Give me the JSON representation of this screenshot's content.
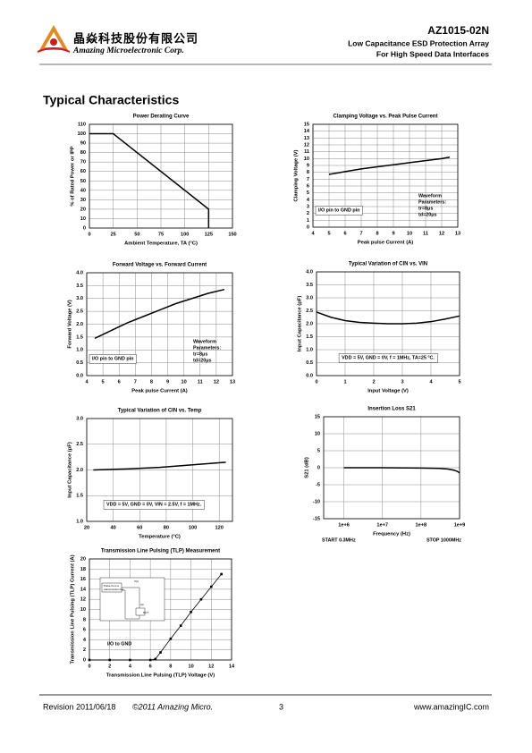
{
  "header": {
    "company_cn": "晶焱科技股份有限公司",
    "company_en": "Amazing Microelectronic Corp.",
    "part": "AZ1015-02N",
    "line1": "Low Capacitance ESD Protection Array",
    "line2": "For High Speed Data Interfaces"
  },
  "section_title": "Typical Characteristics",
  "chart_data": [
    {
      "type": "line",
      "title": "Power Derating Curve",
      "xlabel": "Ambient Temperature, TA (°C)",
      "ylabel": "% of Rated Power or IPP",
      "x": [
        0,
        25,
        125,
        125
      ],
      "series": [
        {
          "color": "#000000",
          "values": [
            100,
            100,
            20,
            0
          ]
        }
      ],
      "xlim": [
        0,
        150
      ],
      "ylim": [
        0,
        110
      ],
      "xticks": [
        0,
        25,
        50,
        75,
        100,
        125,
        150
      ],
      "yticks": [
        0,
        10,
        20,
        30,
        40,
        50,
        60,
        70,
        80,
        90,
        100,
        110
      ],
      "grid": true,
      "annotations": []
    },
    {
      "type": "line",
      "title": "Clamping Voltage vs. Peak Pulse Current",
      "xlabel": "Peak pulse Current (A)",
      "ylabel": "Clamping Voltage (V)",
      "x": [
        5,
        6,
        7,
        8,
        9,
        10,
        11,
        12,
        12.5
      ],
      "series": [
        {
          "color": "#000000",
          "values": [
            7.7,
            8.1,
            8.5,
            8.8,
            9.1,
            9.4,
            9.7,
            10.0,
            10.2
          ]
        }
      ],
      "xlim": [
        4,
        13
      ],
      "ylim": [
        0,
        15
      ],
      "xticks": [
        4,
        5,
        6,
        7,
        8,
        9,
        10,
        11,
        12,
        13
      ],
      "yticks": [
        0,
        1,
        2,
        3,
        4,
        5,
        6,
        7,
        8,
        9,
        10,
        11,
        12,
        13,
        14,
        15
      ],
      "grid": true,
      "annotations": [
        "I/O pin to GND pin",
        "Waveform",
        "Parameters:",
        "tr=8μs",
        "td=20μs"
      ]
    },
    {
      "type": "line",
      "title": "Forward Voltage vs. Forward Current",
      "xlabel": "Peak pulse Current (A)",
      "ylabel": "Forward Voltage (V)",
      "x": [
        4.5,
        5.5,
        6.5,
        7.5,
        8.5,
        9.5,
        10.5,
        11.5,
        12.5
      ],
      "series": [
        {
          "color": "#000000",
          "values": [
            1.45,
            1.75,
            2.05,
            2.3,
            2.55,
            2.8,
            3.0,
            3.2,
            3.35
          ]
        }
      ],
      "xlim": [
        4,
        13
      ],
      "ylim": [
        0,
        4
      ],
      "xticks": [
        4,
        5,
        6,
        7,
        8,
        9,
        10,
        11,
        12,
        13
      ],
      "yticks": [
        {
          "value": 0,
          "label": "0.0"
        },
        0.5,
        {
          "value": 1,
          "label": "1.0"
        },
        1.5,
        {
          "value": 2,
          "label": "2.0"
        },
        2.5,
        {
          "value": 3,
          "label": "3.0"
        },
        3.5,
        {
          "value": 4,
          "label": "4.0"
        }
      ],
      "grid": true,
      "annotations": [
        "I/O pin to GND pin",
        "Waveform",
        "Parameters:",
        "tr=8μs",
        "td=20μs"
      ]
    },
    {
      "type": "line",
      "title": "Typical Variation of CIN vs. VIN",
      "xlabel": "Input Voltage (V)",
      "ylabel": "Input Capacitance (pF)",
      "x": [
        0,
        0.5,
        1,
        1.5,
        2,
        2.5,
        3,
        3.5,
        4,
        4.5,
        5
      ],
      "series": [
        {
          "color": "#000000",
          "values": [
            2.45,
            2.25,
            2.12,
            2.05,
            2.02,
            2.0,
            2.0,
            2.02,
            2.08,
            2.18,
            2.3
          ]
        }
      ],
      "xlim": [
        0,
        5
      ],
      "ylim": [
        0,
        4
      ],
      "xticks": [
        0,
        1,
        2,
        3,
        4,
        5
      ],
      "yticks": [
        {
          "value": 0,
          "label": "0.0"
        },
        0.5,
        {
          "value": 1,
          "label": "1.0"
        },
        1.5,
        {
          "value": 2,
          "label": "2.0"
        },
        2.5,
        {
          "value": 3,
          "label": "3.0"
        },
        3.5,
        {
          "value": 4,
          "label": "4.0"
        }
      ],
      "grid": true,
      "annotations": [
        "VDD = 5V, GND = 0V, f = 1MHz, TA=25 °C."
      ]
    },
    {
      "type": "line",
      "title": "Typical Variation of CIN vs. Temp",
      "xlabel": "Temperature (°C)",
      "ylabel": "Input Capacitance (pF)",
      "x": [
        25,
        50,
        75,
        100,
        125
      ],
      "series": [
        {
          "color": "#000000",
          "values": [
            2.0,
            2.02,
            2.05,
            2.1,
            2.15
          ]
        }
      ],
      "xlim": [
        20,
        130
      ],
      "ylim": [
        1,
        3
      ],
      "xticks": [
        20,
        40,
        60,
        80,
        100,
        120
      ],
      "yticks": [
        {
          "value": 1,
          "label": "1.0"
        },
        1.5,
        {
          "value": 2,
          "label": "2.0"
        },
        2.5,
        {
          "value": 3,
          "label": "3.0"
        }
      ],
      "grid": true,
      "annotations": [
        "VDD = 5V, GND = 0V, VIN = 2.5V, f = 1MHz."
      ]
    },
    {
      "type": "line",
      "title": "Insertion Loss S21",
      "xlabel": "Frequency (Hz)",
      "ylabel": "S21 (dB)",
      "log_x": true,
      "x": [
        1000000,
        10000000,
        100000000,
        300000000,
        500000000,
        700000000,
        850000000,
        1000000000
      ],
      "series": [
        {
          "color": "#000000",
          "values": [
            0,
            0,
            -0.1,
            -0.2,
            -0.4,
            -0.7,
            -1.0,
            -1.5
          ]
        }
      ],
      "xlim": [
        300000,
        1000000000
      ],
      "ylim": [
        -15,
        15
      ],
      "xticks": [
        {
          "value": 1000000,
          "label": "1e+6"
        },
        {
          "value": 10000000,
          "label": "1e+7"
        },
        {
          "value": 100000000,
          "label": "1e+8"
        },
        {
          "value": 1000000000,
          "label": "1e+9"
        }
      ],
      "yticks": [
        -15,
        -10,
        -5,
        0,
        5,
        10,
        15
      ],
      "grid": true,
      "annotations": [
        "START 0.3MHz",
        "STOP 1000MHz"
      ]
    },
    {
      "type": "line",
      "title": "Transmission Line Pulsing (TLP) Measurement",
      "xlabel": "Transmission Line Pulsing (TLP) Voltage (V)",
      "ylabel": "Transmission Line Pulsing (TLP) Current (A)",
      "markers": true,
      "x": [
        0,
        2,
        4,
        6,
        6.5,
        7,
        8,
        9,
        10,
        11,
        12,
        13
      ],
      "series": [
        {
          "color": "#000000",
          "values": [
            0,
            0,
            0,
            0,
            0.2,
            1.5,
            4.2,
            6.8,
            9.5,
            12,
            14.5,
            17
          ]
        }
      ],
      "xlim": [
        0,
        14
      ],
      "ylim": [
        0,
        20
      ],
      "xticks": [
        0,
        2,
        4,
        6,
        8,
        10,
        12,
        14
      ],
      "yticks": [
        0,
        2,
        4,
        6,
        8,
        10,
        12,
        14,
        16,
        18,
        20
      ],
      "grid": true,
      "annotations": [
        "I/O to GND",
        "Pulse from a",
        "transmission line",
        "V(t)",
        "I(t)",
        "DUT"
      ]
    }
  ],
  "footer": {
    "revision": "Revision 2011/06/18",
    "copyright": "©2011   Amazing Micro.",
    "page": "3",
    "url": "www.amazingIC.com"
  }
}
